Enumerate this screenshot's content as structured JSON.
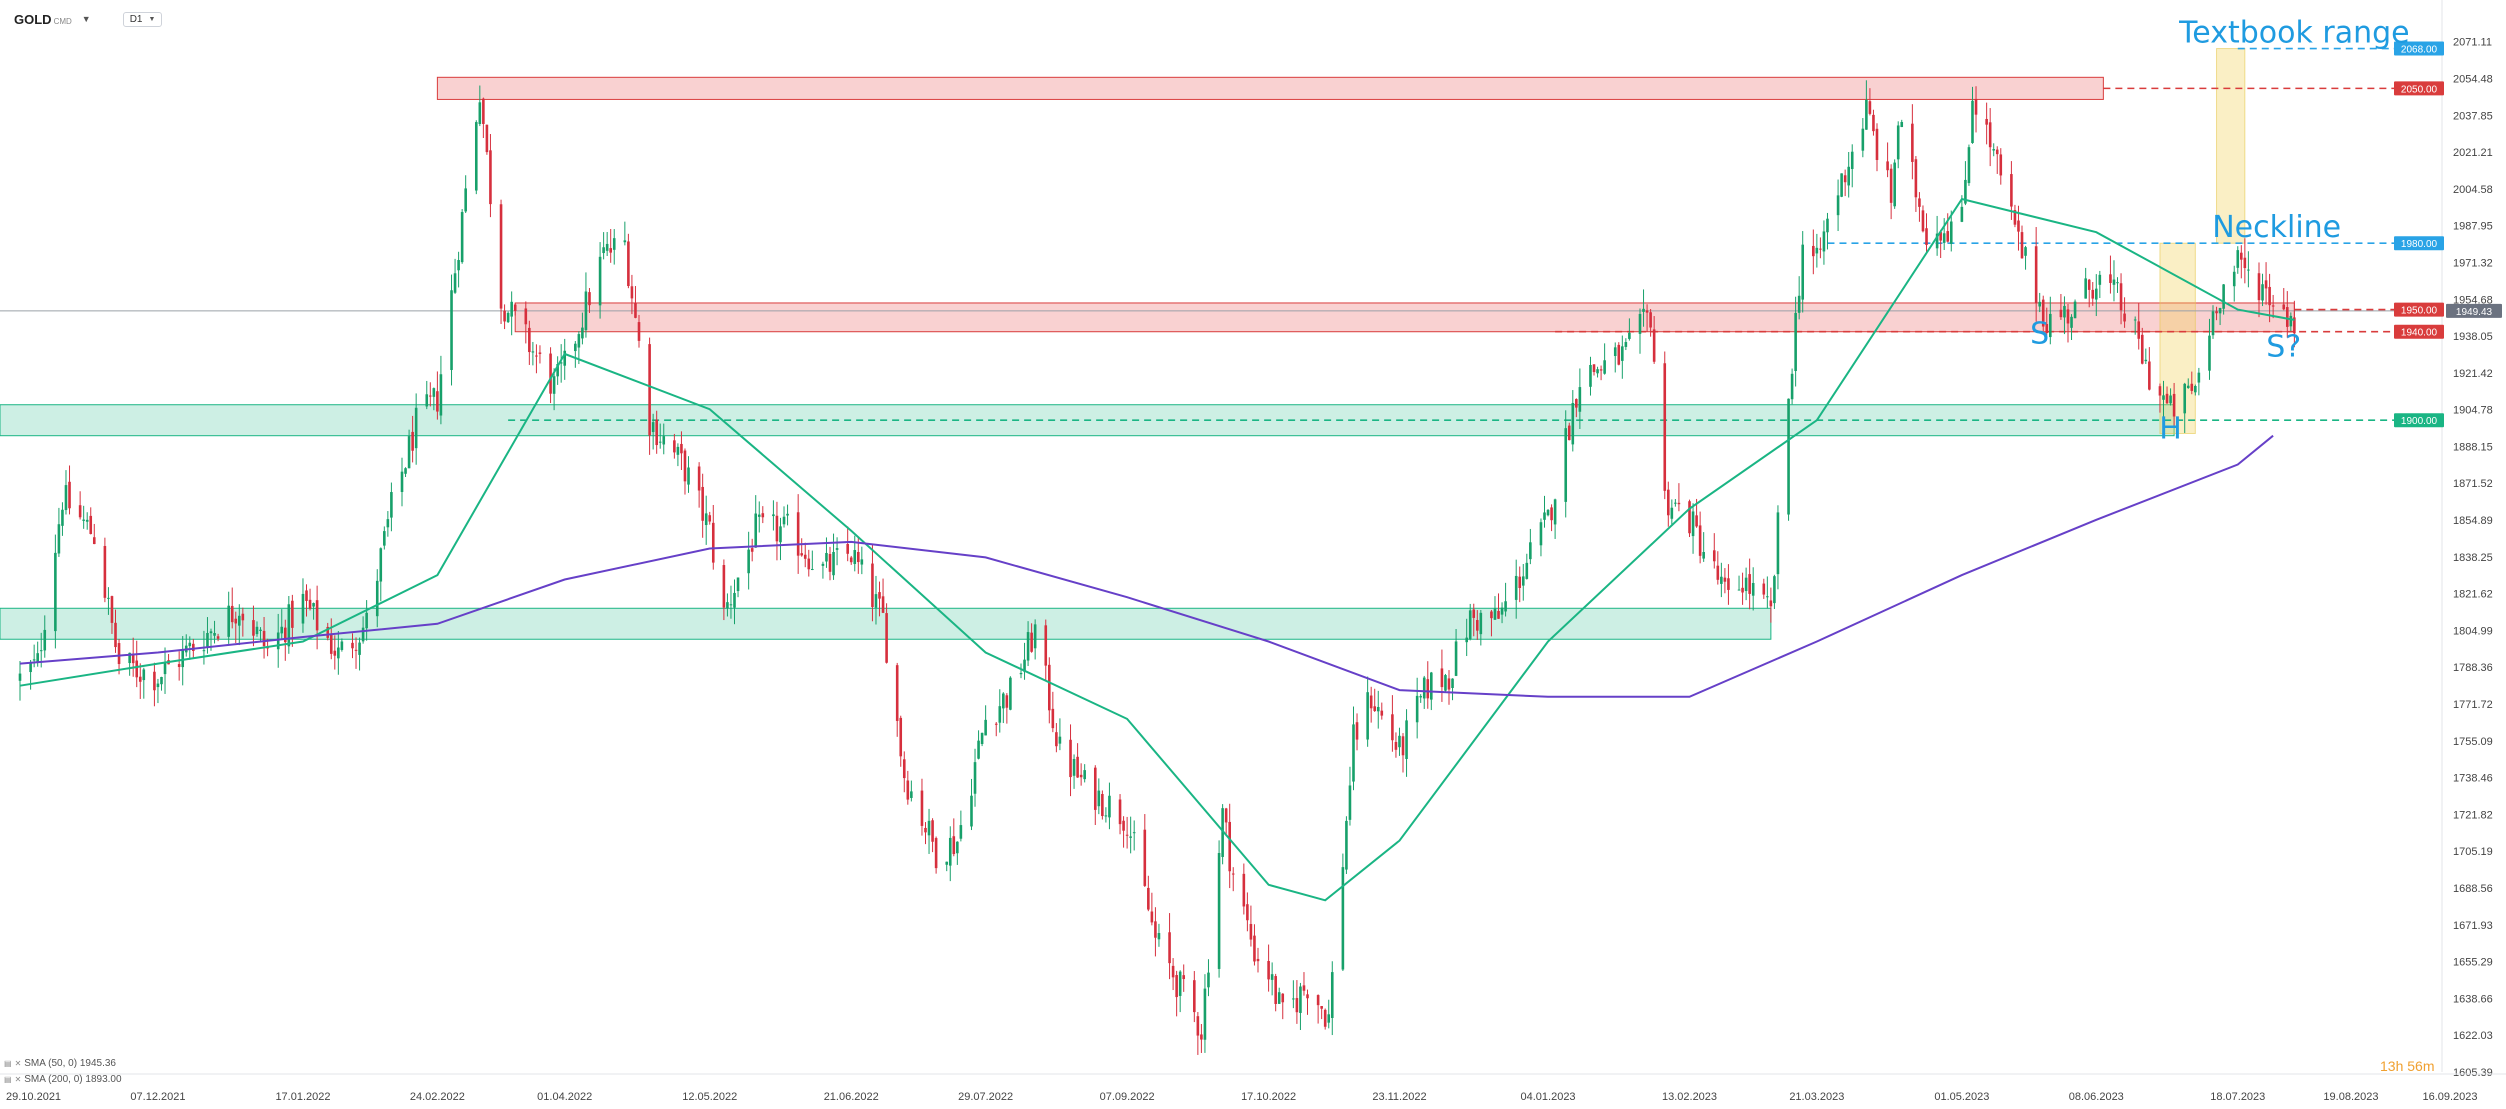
{
  "toolbar": {
    "symbol": "GOLD",
    "symbol_suffix": "CMD",
    "timeframe": "D1"
  },
  "indicators": [
    {
      "label": "SMA (50, 0) 1945.36",
      "color": "#1ab584"
    },
    {
      "label": "SMA (200, 0) 1893.00",
      "color": "#6640c8"
    }
  ],
  "timer": "13h 56m",
  "chart_data": {
    "type": "candlestick",
    "instrument": "GOLD",
    "timeframe": "D1",
    "ylim": [
      1605.39,
      2080
    ],
    "y_ticks": [
      "2071.11",
      "2054.48",
      "2037.85",
      "2021.21",
      "2004.58",
      "1987.95",
      "1971.32",
      "1954.68",
      "1938.05",
      "1921.42",
      "1904.78",
      "1888.15",
      "1871.52",
      "1854.89",
      "1838.25",
      "1821.62",
      "1804.99",
      "1788.36",
      "1771.72",
      "1755.09",
      "1738.46",
      "1721.82",
      "1705.19",
      "1688.56",
      "1671.93",
      "1655.29",
      "1638.66",
      "1622.03",
      "1605.39"
    ],
    "x_ticks": [
      "29.10.2021",
      "07.12.2021",
      "17.01.2022",
      "24.02.2022",
      "01.04.2022",
      "12.05.2022",
      "21.06.2022",
      "29.07.2022",
      "07.09.2022",
      "17.10.2022",
      "23.11.2022",
      "04.01.2023",
      "13.02.2023",
      "21.03.2023",
      "01.05.2023",
      "08.06.2023",
      "18.07.2023",
      "19.08.2023",
      "16.09.2023"
    ],
    "price_path": [
      [
        "29.10.2021",
        1783
      ],
      [
        "03.11.2021",
        1790
      ],
      [
        "10.11.2021",
        1865
      ],
      [
        "19.11.2021",
        1848
      ],
      [
        "26.11.2021",
        1790
      ],
      [
        "07.12.2021",
        1784
      ],
      [
        "17.12.2021",
        1798
      ],
      [
        "30.12.2021",
        1816
      ],
      [
        "07.01.2022",
        1796
      ],
      [
        "17.01.2022",
        1818
      ],
      [
        "27.01.2022",
        1794
      ],
      [
        "04.02.2022",
        1808
      ],
      [
        "11.02.2022",
        1860
      ],
      [
        "18.02.2022",
        1898
      ],
      [
        "24.02.2022",
        1910
      ],
      [
        "08.03.2022",
        2050
      ],
      [
        "14.03.2022",
        1955
      ],
      [
        "22.03.2022",
        1934
      ],
      [
        "29.03.2022",
        1915
      ],
      [
        "01.04.2022",
        1924
      ],
      [
        "12.04.2022",
        1975
      ],
      [
        "18.04.2022",
        1980
      ],
      [
        "25.04.2022",
        1900
      ],
      [
        "05.05.2022",
        1878
      ],
      [
        "12.05.2022",
        1850
      ],
      [
        "16.05.2022",
        1812
      ],
      [
        "25.05.2022",
        1850
      ],
      [
        "03.06.2022",
        1850
      ],
      [
        "13.06.2022",
        1832
      ],
      [
        "21.06.2022",
        1840
      ],
      [
        "30.06.2022",
        1810
      ],
      [
        "06.07.2022",
        1740
      ],
      [
        "15.07.2022",
        1705
      ],
      [
        "21.07.2022",
        1710
      ],
      [
        "29.07.2022",
        1765
      ],
      [
        "05.08.2022",
        1777
      ],
      [
        "12.08.2022",
        1805
      ],
      [
        "19.08.2022",
        1750
      ],
      [
        "26.08.2022",
        1735
      ],
      [
        "07.09.2022",
        1720
      ],
      [
        "15.09.2022",
        1665
      ],
      [
        "28.09.2022",
        1625
      ],
      [
        "04.10.2022",
        1722
      ],
      [
        "07.10.2022",
        1695
      ],
      [
        "13.10.2022",
        1660
      ],
      [
        "17.10.2022",
        1650
      ],
      [
        "21.10.2022",
        1630
      ],
      [
        "28.10.2022",
        1645
      ],
      [
        "03.11.2022",
        1630
      ],
      [
        "10.11.2022",
        1755
      ],
      [
        "15.11.2022",
        1775
      ],
      [
        "23.11.2022",
        1750
      ],
      [
        "01.12.2022",
        1780
      ],
      [
        "07.12.2022",
        1785
      ],
      [
        "13.12.2022",
        1810
      ],
      [
        "21.12.2022",
        1810
      ],
      [
        "04.01.2023",
        1855
      ],
      [
        "13.01.2023",
        1920
      ],
      [
        "20.01.2023",
        1925
      ],
      [
        "26.01.2023",
        1930
      ],
      [
        "02.02.2023",
        1948
      ],
      [
        "06.02.2023",
        1865
      ],
      [
        "13.02.2023",
        1855
      ],
      [
        "24.02.2023",
        1818
      ],
      [
        "28.02.2023",
        1828
      ],
      [
        "08.03.2023",
        1812
      ],
      [
        "13.03.2023",
        1910
      ],
      [
        "17.03.2023",
        1980
      ],
      [
        "21.03.2023",
        1970
      ],
      [
        "24.03.2023",
        1990
      ],
      [
        "04.04.2023",
        2040
      ],
      [
        "11.04.2023",
        2000
      ],
      [
        "13.04.2023",
        2035
      ],
      [
        "21.04.2023",
        1985
      ],
      [
        "01.05.2023",
        1990
      ],
      [
        "04.05.2023",
        2048
      ],
      [
        "10.05.2023",
        2020
      ],
      [
        "17.05.2023",
        1980
      ],
      [
        "25.05.2023",
        1945
      ],
      [
        "02.06.2023",
        1950
      ],
      [
        "08.06.2023",
        1965
      ],
      [
        "14.06.2023",
        1955
      ],
      [
        "19.06.2023",
        1938
      ],
      [
        "23.06.2023",
        1920
      ],
      [
        "29.06.2023",
        1904
      ],
      [
        "06.07.2023",
        1915
      ],
      [
        "12.07.2023",
        1955
      ],
      [
        "18.07.2023",
        1970
      ],
      [
        "24.07.2023",
        1962
      ],
      [
        "28.07.2023",
        1955
      ],
      [
        "03.08.2023",
        1945
      ]
    ],
    "sma_series": [
      {
        "name": "SMA (50, 0)",
        "color": "#1ab584",
        "points": [
          [
            "29.10.2021",
            1780
          ],
          [
            "07.12.2021",
            1790
          ],
          [
            "17.01.2022",
            1800
          ],
          [
            "24.02.2022",
            1830
          ],
          [
            "14.03.2022",
            1880
          ],
          [
            "01.04.2022",
            1930
          ],
          [
            "12.05.2022",
            1905
          ],
          [
            "21.06.2022",
            1850
          ],
          [
            "29.07.2022",
            1795
          ],
          [
            "07.09.2022",
            1765
          ],
          [
            "17.10.2022",
            1690
          ],
          [
            "02.11.2022",
            1683
          ],
          [
            "23.11.2022",
            1710
          ],
          [
            "04.01.2023",
            1800
          ],
          [
            "13.02.2023",
            1860
          ],
          [
            "21.03.2023",
            1900
          ],
          [
            "01.05.2023",
            2000
          ],
          [
            "08.06.2023",
            1985
          ],
          [
            "18.07.2023",
            1950
          ],
          [
            "03.08.2023",
            1945.36
          ]
        ]
      },
      {
        "name": "SMA (200, 0)",
        "color": "#6640c8",
        "points": [
          [
            "29.10.2021",
            1790
          ],
          [
            "07.12.2021",
            1795
          ],
          [
            "17.01.2022",
            1802
          ],
          [
            "24.02.2022",
            1808
          ],
          [
            "01.04.2022",
            1828
          ],
          [
            "12.05.2022",
            1842
          ],
          [
            "21.06.2022",
            1845
          ],
          [
            "29.07.2022",
            1838
          ],
          [
            "07.09.2022",
            1820
          ],
          [
            "17.10.2022",
            1800
          ],
          [
            "23.11.2022",
            1778
          ],
          [
            "04.01.2023",
            1775
          ],
          [
            "13.02.2023",
            1775
          ],
          [
            "21.03.2023",
            1800
          ],
          [
            "01.05.2023",
            1830
          ],
          [
            "08.06.2023",
            1855
          ],
          [
            "18.07.2023",
            1880
          ],
          [
            "28.07.2023",
            1893
          ]
        ]
      }
    ],
    "zones": [
      {
        "type": "resistance",
        "from": "24.02.2022",
        "to": "10.06.2023",
        "y1": 2045,
        "y2": 2055
      },
      {
        "type": "resistance",
        "from": "18.03.2022",
        "to": "03.08.2023",
        "y1": 1940,
        "y2": 1953
      },
      {
        "type": "support",
        "from": "29.10.2021",
        "to": "30.06.2023",
        "y1": 1893,
        "y2": 1907
      },
      {
        "type": "support",
        "from": "29.10.2021",
        "to": "08.03.2023",
        "y1": 1801,
        "y2": 1815
      },
      {
        "type": "highlight",
        "from": "26.06.2023",
        "to": "06.07.2023",
        "y1": 1894,
        "y2": 1980
      },
      {
        "type": "highlight",
        "from": "12.07.2023",
        "to": "20.07.2023",
        "y1": 1980,
        "y2": 2068
      }
    ],
    "levels": [
      {
        "value": 2068.0,
        "label": "2068.00",
        "color": "#29a3e6",
        "from": "18.07.2023"
      },
      {
        "value": 2050.0,
        "label": "2050.00",
        "color": "#d93c3c",
        "from": "10.06.2023"
      },
      {
        "value": 1980.0,
        "label": "1980.00",
        "color": "#29a3e6",
        "from": "24.03.2023"
      },
      {
        "value": 1950.0,
        "label": "1950.00",
        "color": "#d93c3c",
        "from": "03.08.2023"
      },
      {
        "value": 1940.0,
        "label": "1940.00",
        "color": "#d93c3c",
        "from": "06.01.2023"
      },
      {
        "value": 1900.0,
        "label": "1900.00",
        "color": "#1ab584",
        "from": "16.03.2022"
      }
    ],
    "current_price": {
      "value": 1949.43,
      "label": "1949.43"
    },
    "annotations": [
      {
        "text": "Textbook range",
        "date": "03.08.2023",
        "price": 2068
      },
      {
        "text": "Neckline",
        "date": "29.07.2023",
        "price": 1980
      },
      {
        "text": "S",
        "date": "23.05.2023",
        "price": 1932
      },
      {
        "text": "H",
        "date": "29.06.2023",
        "price": 1889
      },
      {
        "text": "S?",
        "date": "31.07.2023",
        "price": 1926
      }
    ]
  }
}
